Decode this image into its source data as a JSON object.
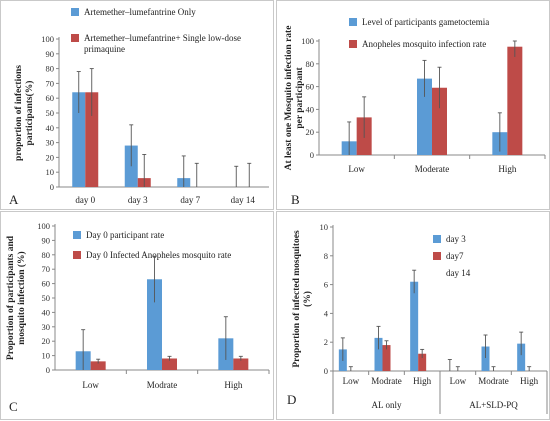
{
  "colors": {
    "blue": "#5B9BD5",
    "red": "#BE4B48",
    "axis": "#888888",
    "err": "#555555"
  },
  "chart_data": [
    {
      "panel": "A",
      "type": "bar",
      "ylabel": "proportion of infections participants(%)",
      "ylim": [
        0,
        100
      ],
      "yticks": [
        0,
        10,
        20,
        30,
        40,
        50,
        60,
        70,
        80,
        90,
        100
      ],
      "categories": [
        "day 0",
        "day 3",
        "day 7",
        "day 14"
      ],
      "series": [
        {
          "name": "Artemether–lumefantrine Only",
          "values": [
            64,
            28,
            6,
            0
          ],
          "err": [
            14,
            14,
            15,
            14
          ]
        },
        {
          "name": "Artemether–lumefantrine+ Single low-dose primaquine",
          "values": [
            64,
            6,
            0,
            0
          ],
          "err": [
            16,
            16,
            16,
            16
          ]
        }
      ]
    },
    {
      "panel": "B",
      "type": "bar",
      "ylabel": "At least one Mosquito infection rate per participant",
      "ylim": [
        0,
        100
      ],
      "yticks": [
        0,
        20,
        40,
        60,
        80,
        100
      ],
      "categories": [
        "Low",
        "Moderate",
        "High"
      ],
      "series": [
        {
          "name": "Level of participants gametoctemia",
          "values": [
            12,
            67,
            20
          ],
          "err": [
            17,
            16,
            17
          ]
        },
        {
          "name": "Anopheles mosquito infection rate",
          "values": [
            33,
            59,
            95
          ],
          "err": [
            18,
            18,
            9
          ]
        }
      ]
    },
    {
      "panel": "C",
      "type": "bar",
      "ylabel": "Proportion of participants and mosquito infection (%)",
      "ylim": [
        0,
        100
      ],
      "yticks": [
        0,
        10,
        20,
        30,
        40,
        50,
        60,
        70,
        80,
        90,
        100
      ],
      "categories": [
        "Low",
        "Modrate",
        "High"
      ],
      "series": [
        {
          "name": "Day 0 participant rate",
          "values": [
            13,
            63,
            22
          ],
          "err": [
            15,
            16,
            15
          ]
        },
        {
          "name": "Day 0 Infected Anopheles mosquito rate",
          "values": [
            6,
            8,
            8
          ],
          "err": [
            1.5,
            1.5,
            1.5
          ]
        }
      ]
    },
    {
      "panel": "D",
      "type": "bar",
      "ylabel": "Proportion of infected mosquitoes (%)",
      "ylim": [
        0,
        10
      ],
      "yticks": [
        0,
        2,
        4,
        6,
        8,
        10
      ],
      "categories": [
        "Low",
        "Modrate",
        "High",
        "Low",
        "Modrate",
        "High"
      ],
      "groups": [
        "AL only",
        "AL+SLD-PQ"
      ],
      "series": [
        {
          "name": "day 3",
          "values": [
            1.5,
            2.3,
            6.2,
            0,
            1.7,
            1.9
          ],
          "err": [
            0.8,
            0.8,
            0.8,
            0.8,
            0.8,
            0.8
          ]
        },
        {
          "name": "day7",
          "values": [
            0,
            1.8,
            1.2,
            0,
            0,
            0
          ],
          "err": [
            0.3,
            0.3,
            0.3,
            0.3,
            0.3,
            0.3
          ]
        },
        {
          "name": "day 14",
          "values": [
            0,
            0,
            0,
            0,
            0,
            0
          ],
          "err": [
            0,
            0,
            0,
            0,
            0,
            0
          ]
        }
      ]
    }
  ]
}
